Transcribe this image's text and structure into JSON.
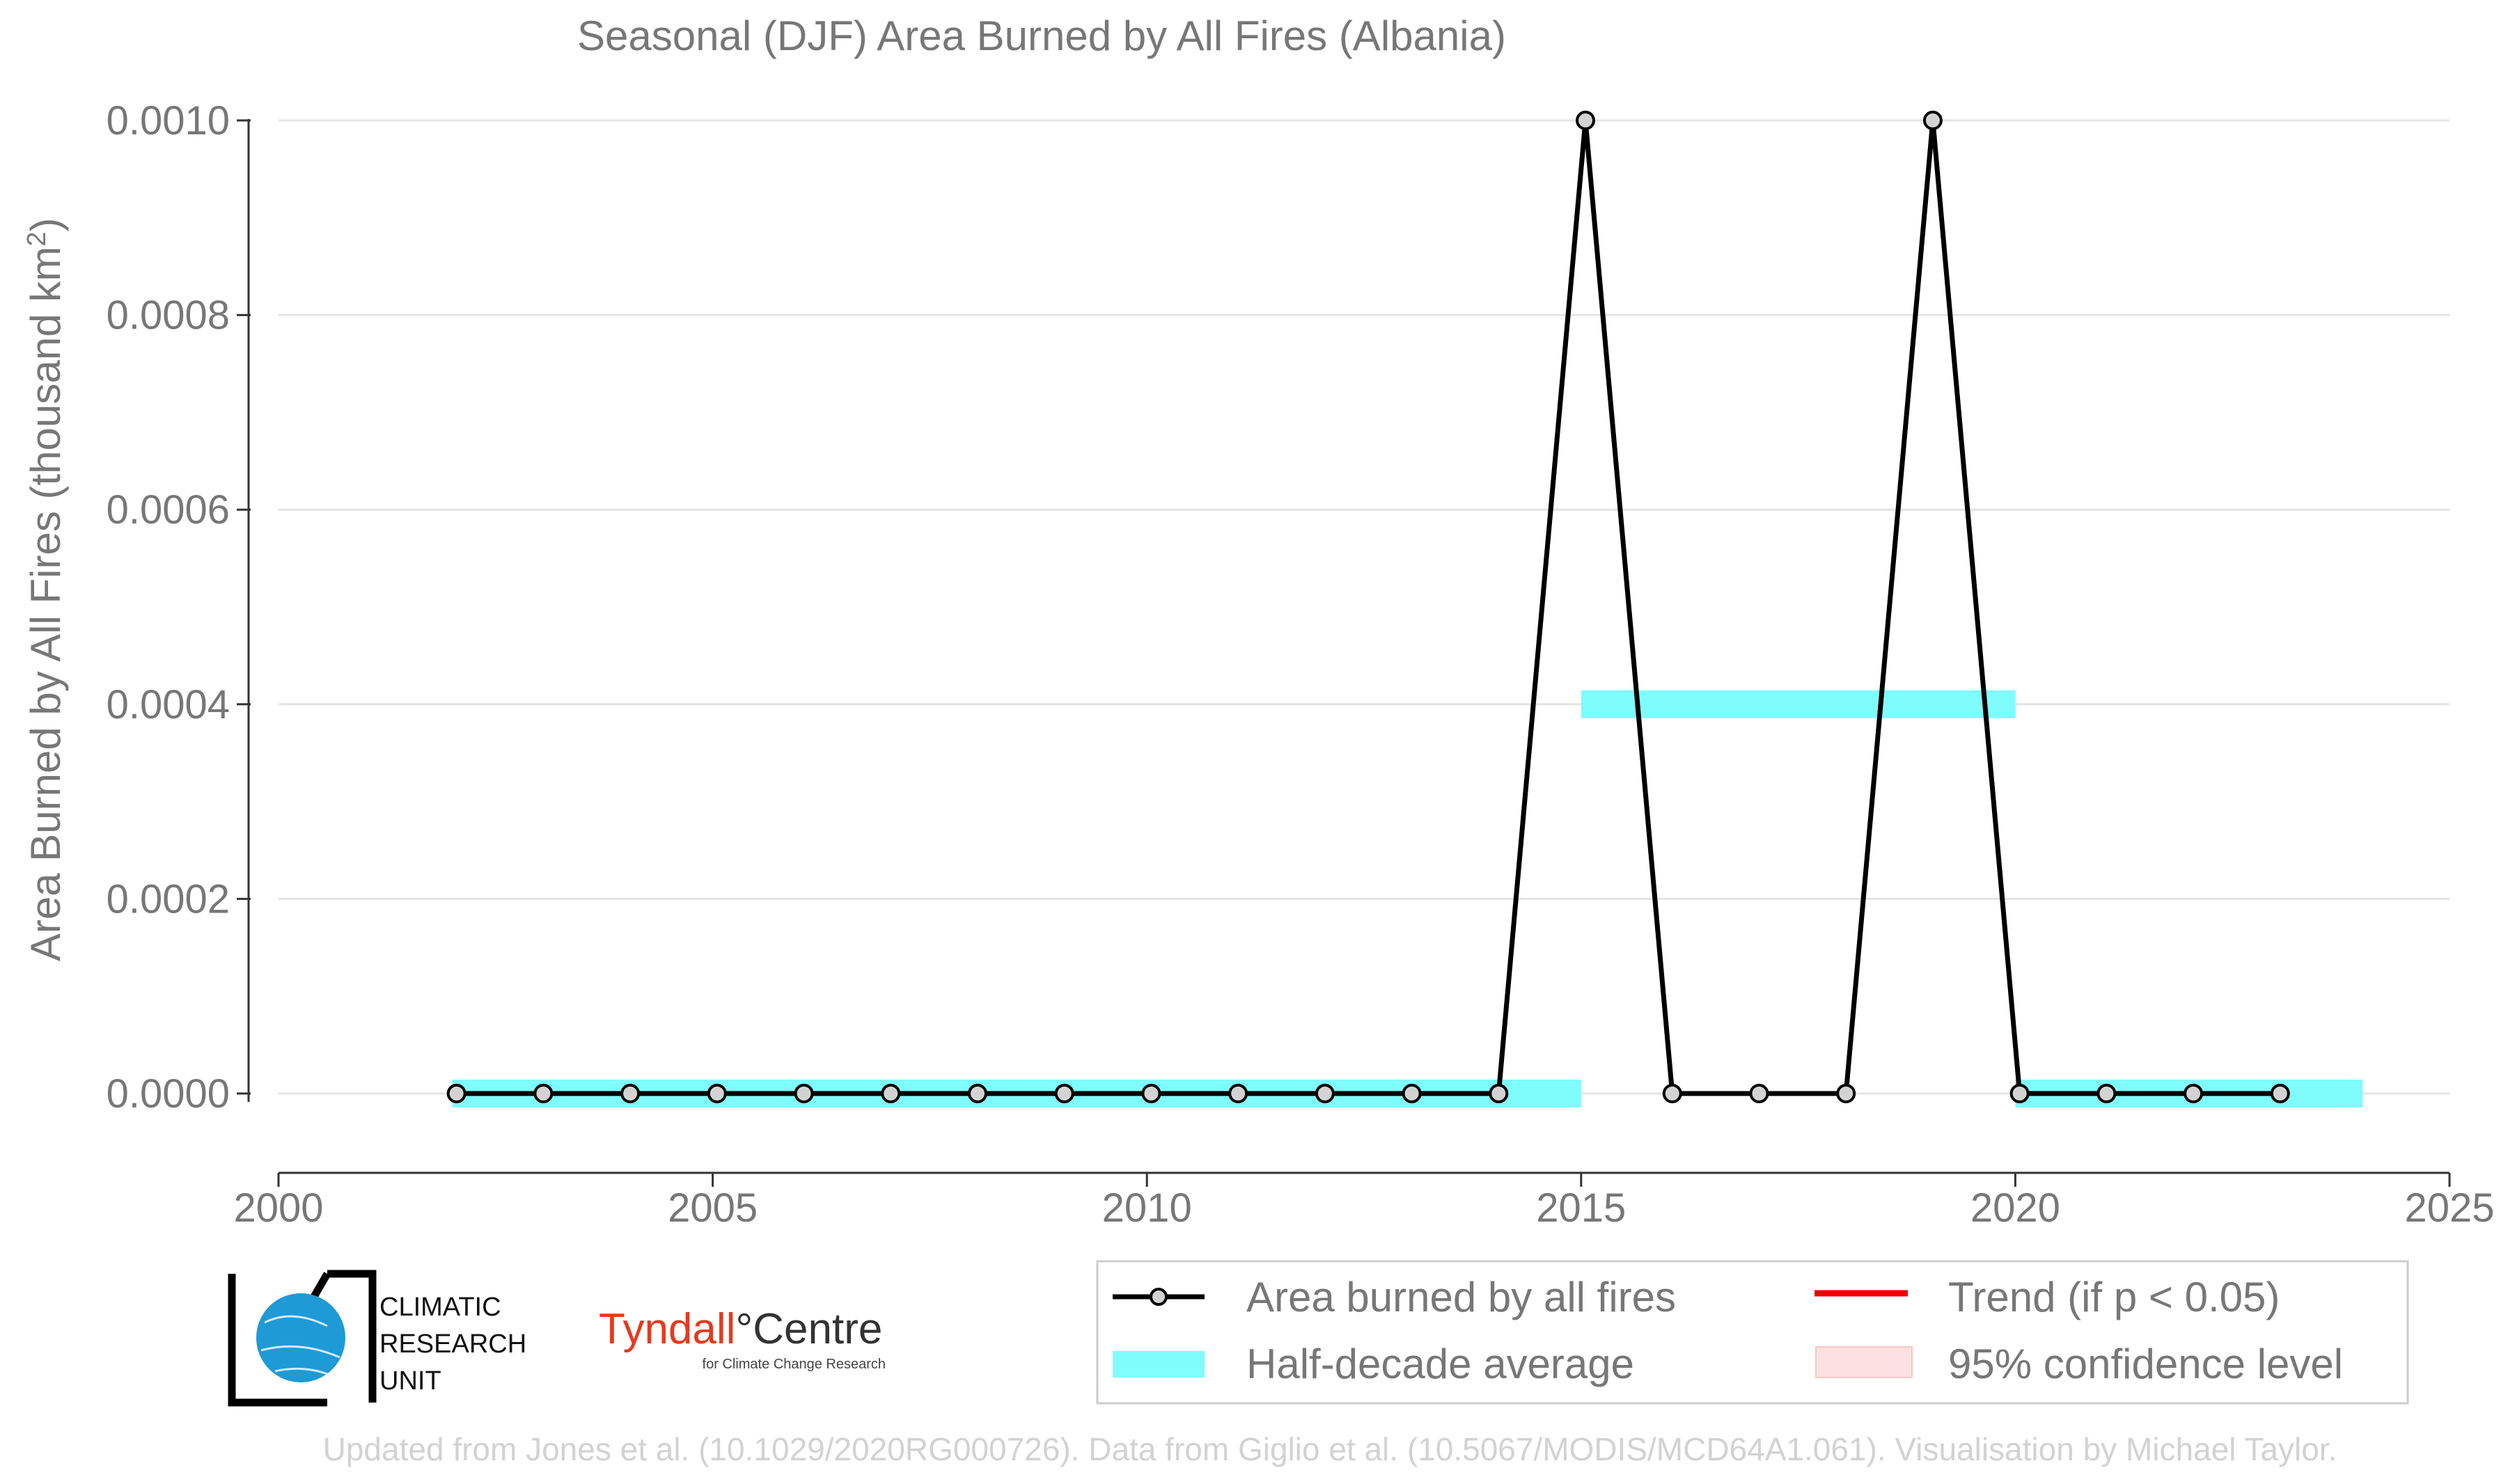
{
  "chart_data": {
    "type": "line",
    "title": "Seasonal (DJF) Area Burned by All Fires (Albania)",
    "ylabel": "Area Burned by All Fires (thousand km²)",
    "xlabel": "",
    "xlim": [
      2000,
      2025
    ],
    "ylim": [
      -8e-05,
      0.00101
    ],
    "x_ticks": [
      2000,
      2005,
      2010,
      2015,
      2020,
      2025
    ],
    "y_ticks": [
      0.0,
      0.0002,
      0.0004,
      0.0006,
      0.0008,
      0.001
    ],
    "x_tick_labels": [
      "2000",
      "2005",
      "2010",
      "2015",
      "2020",
      "2025"
    ],
    "y_tick_labels": [
      "0.0000",
      "0.0002",
      "0.0004",
      "0.0006",
      "0.0008",
      "0.0010"
    ],
    "grid": "horizontal",
    "series": [
      {
        "name": "Area burned by all fires",
        "color": "#000000",
        "x": [
          2002,
          2003,
          2004,
          2005,
          2006,
          2007,
          2008,
          2009,
          2010,
          2011,
          2012,
          2013,
          2014,
          2015,
          2016,
          2017,
          2018,
          2019,
          2020,
          2021,
          2022,
          2023
        ],
        "y": [
          0,
          0,
          0,
          0,
          0,
          0,
          0,
          0,
          0,
          0,
          0,
          0,
          0,
          0.001,
          0,
          0,
          0,
          0.001,
          0,
          0,
          0,
          0
        ]
      }
    ],
    "half_decade_average": {
      "name": "Half-decade average",
      "color": "#7ffcfc",
      "segments": [
        {
          "x_start": 2002,
          "x_end": 2015,
          "value": 0.0
        },
        {
          "x_start": 2015,
          "x_end": 2020,
          "value": 0.0004
        },
        {
          "x_start": 2020,
          "x_end": 2024,
          "value": 0.0
        }
      ]
    },
    "legend": {
      "position": "bottom-right",
      "entries": [
        {
          "label": "Area burned by all fires",
          "kind": "line-marker",
          "color": "#000000"
        },
        {
          "label": "Trend (if p < 0.05)",
          "kind": "line",
          "color": "#ee0000"
        },
        {
          "label": "Half-decade average",
          "kind": "band",
          "color": "#7ffcfc"
        },
        {
          "label": "95% confidence level",
          "kind": "band",
          "color": "#fde0e0"
        }
      ]
    }
  },
  "logos": {
    "cru_line1": "CLIMATIC",
    "cru_line2": "RESEARCH",
    "cru_line3": "UNIT",
    "tyndall_part1": "Tyndall",
    "tyndall_part2": "°Centre",
    "tyndall_sub": "for Climate Change Research"
  },
  "credit": "Updated from Jones et al. (10.1029/2020RG000726). Data from Giglio et al. (10.5067/MODIS/MCD64A1.061). Visualisation by Michael Taylor."
}
